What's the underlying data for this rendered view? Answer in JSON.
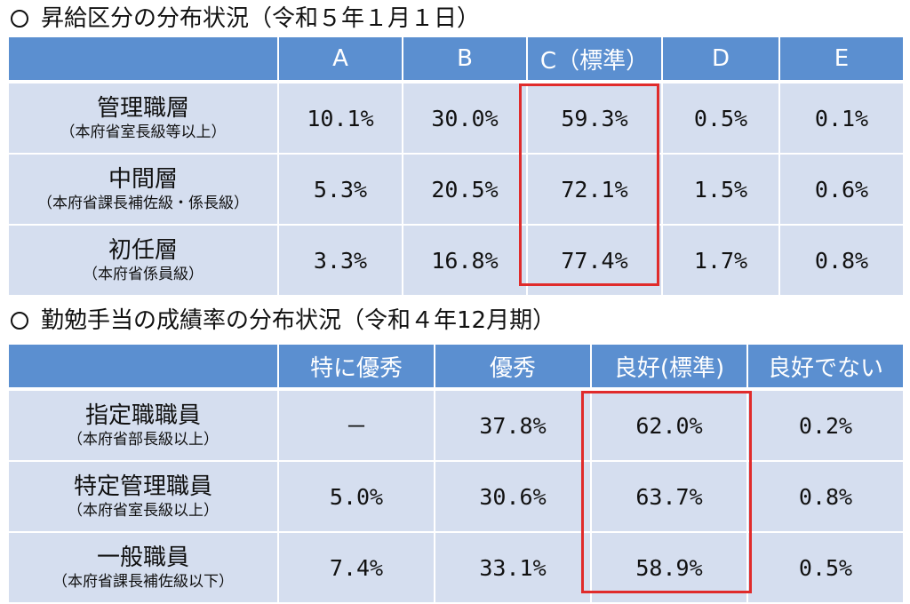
{
  "colors": {
    "header_bg": "#5b8fd0",
    "cell_bg": "#d5deef",
    "highlight": "#e02b2b"
  },
  "section1": {
    "title": "昇給区分の分布状況（令和５年１月１日）",
    "headers": [
      "",
      "A",
      "B",
      "C（標準）",
      "D",
      "E"
    ],
    "rows": [
      {
        "label": "管理職層",
        "sub": "（本府省室長級等以上）",
        "values": [
          "10.1%",
          "30.0%",
          "59.3%",
          "0.5%",
          "0.1%"
        ]
      },
      {
        "label": "中間層",
        "sub": "（本府省課長補佐級・係長級）",
        "values": [
          "5.3%",
          "20.5%",
          "72.1%",
          "1.5%",
          "0.6%"
        ]
      },
      {
        "label": "初任層",
        "sub": "（本府省係員級）",
        "values": [
          "3.3%",
          "16.8%",
          "77.4%",
          "1.7%",
          "0.8%"
        ]
      }
    ]
  },
  "section2": {
    "title": "勤勉手当の成績率の分布状況（令和４年12月期）",
    "headers": [
      "",
      "特に優秀",
      "優秀",
      "良好(標準)",
      "良好でない"
    ],
    "rows": [
      {
        "label": "指定職職員",
        "sub": "（本府省部長級以上）",
        "values": [
          "－",
          "37.8%",
          "62.0%",
          "0.2%"
        ]
      },
      {
        "label": "特定管理職員",
        "sub": "（本府省室長級以上）",
        "values": [
          "5.0%",
          "30.6%",
          "63.7%",
          "0.8%"
        ]
      },
      {
        "label": "一般職員",
        "sub": "（本府省課長補佐級以下）",
        "values": [
          "7.4%",
          "33.1%",
          "58.9%",
          "0.5%"
        ]
      }
    ]
  }
}
